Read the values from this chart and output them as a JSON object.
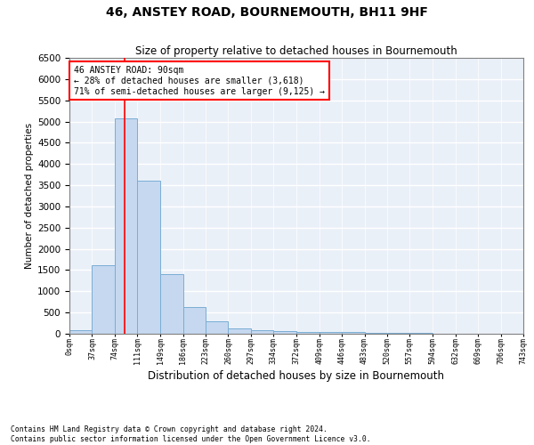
{
  "title": "46, ANSTEY ROAD, BOURNEMOUTH, BH11 9HF",
  "subtitle": "Size of property relative to detached houses in Bournemouth",
  "xlabel": "Distribution of detached houses by size in Bournemouth",
  "ylabel": "Number of detached properties",
  "bar_color": "#c5d8f0",
  "bar_edge_color": "#7aadd4",
  "background_color": "#eaf0f8",
  "annotation_text": "46 ANSTEY ROAD: 90sqm\n← 28% of detached houses are smaller (3,618)\n71% of semi-detached houses are larger (9,125) →",
  "vline_x": 90,
  "bin_edges": [
    0,
    37,
    74,
    111,
    149,
    186,
    223,
    260,
    297,
    334,
    372,
    409,
    446,
    483,
    520,
    557,
    594,
    632,
    669,
    706,
    743
  ],
  "bar_heights": [
    75,
    1620,
    5075,
    3600,
    1400,
    620,
    300,
    135,
    80,
    55,
    45,
    40,
    35,
    25,
    20,
    15,
    10,
    8,
    5,
    5
  ],
  "ylim": [
    0,
    6500
  ],
  "yticks": [
    0,
    500,
    1000,
    1500,
    2000,
    2500,
    3000,
    3500,
    4000,
    4500,
    5000,
    5500,
    6000,
    6500
  ],
  "footer_line1": "Contains HM Land Registry data © Crown copyright and database right 2024.",
  "footer_line2": "Contains public sector information licensed under the Open Government Licence v3.0.",
  "title_fontsize": 10,
  "subtitle_fontsize": 8.5,
  "ylabel_fontsize": 7.5,
  "xlabel_fontsize": 8.5
}
